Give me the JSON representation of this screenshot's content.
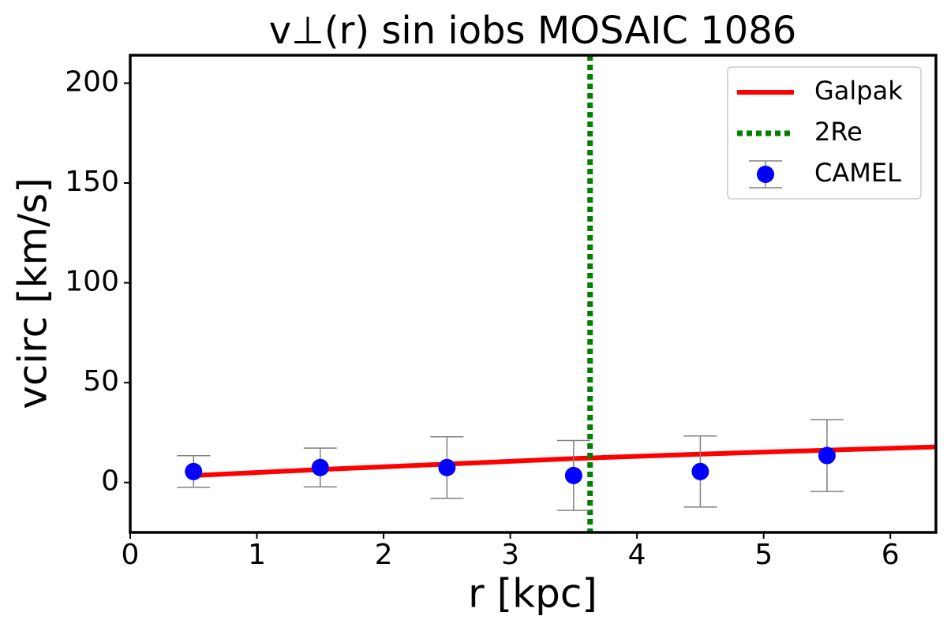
{
  "chart_data": {
    "type": "line",
    "title": "v⊥(r) sin iobs MOSAIC 1086",
    "x_label": "r [kpc]",
    "y_label": "vcirc [km/s]",
    "xlim": [
      0,
      6.36
    ],
    "ylim": [
      -25,
      214
    ],
    "xticks": [
      0,
      1,
      2,
      3,
      4,
      5,
      6
    ],
    "yticks": [
      0,
      50,
      100,
      150,
      200
    ],
    "legend": "upper right",
    "series": [
      {
        "name": "Galpak",
        "kind": "line",
        "color": "#ff0000",
        "x": [
          0.5,
          1.5,
          2.5,
          3.5,
          4.5,
          5.5,
          6.36
        ],
        "values": [
          3.5,
          6.5,
          9.2,
          12,
          14.2,
          16.2,
          17.8
        ]
      },
      {
        "name": "2Re",
        "kind": "vline",
        "color": "#008000",
        "x": [
          3.63
        ]
      },
      {
        "name": "CAMEL",
        "kind": "errorbar",
        "color": "#0000ff",
        "error_color": "#808080",
        "x": [
          0.5,
          1.5,
          2.5,
          3.5,
          4.5,
          5.5
        ],
        "values": [
          5.5,
          7.5,
          7.5,
          3.5,
          5.5,
          13.5
        ],
        "errors": [
          7.9,
          9.7,
          15.4,
          17.5,
          17.8,
          18
        ]
      }
    ]
  }
}
